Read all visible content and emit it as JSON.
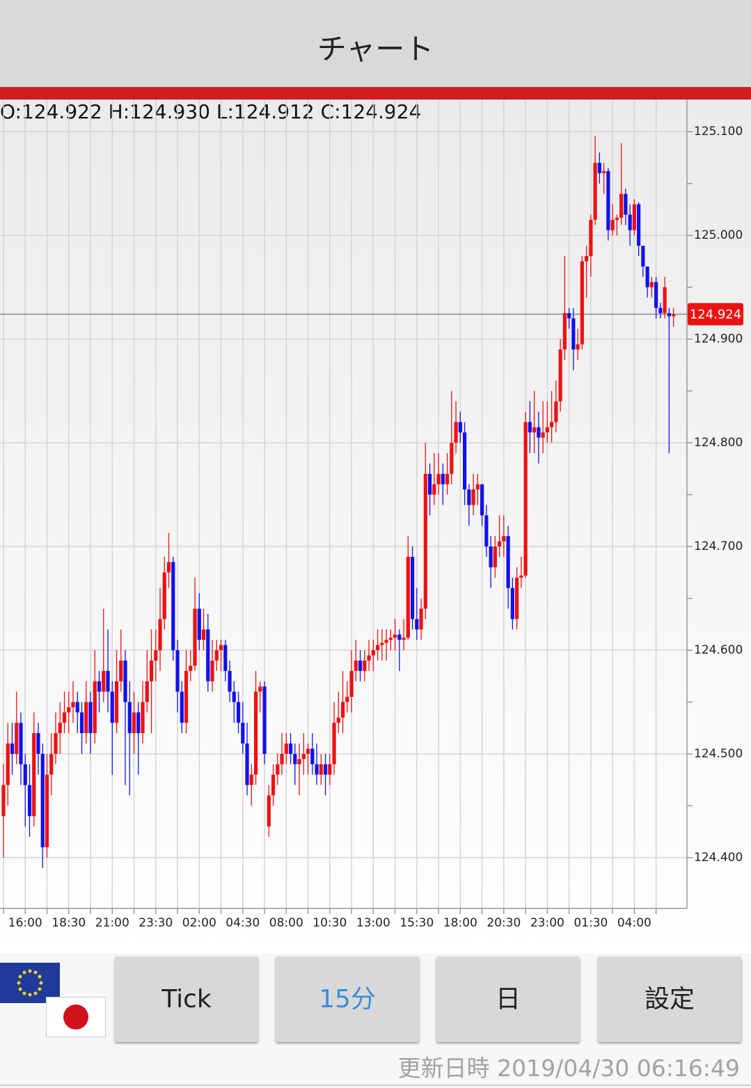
{
  "header": {
    "title": "チャート"
  },
  "chart_data": {
    "type": "candlestick",
    "ohlc_label": "O:124.922 H:124.930 L:124.912 C:124.924",
    "up_color": "#ee1111",
    "down_color": "#1111ee",
    "xlim": [
      -0.8,
      157.1
    ],
    "ylim": [
      124.351,
      125.131
    ],
    "xticks": [
      {
        "value": 5,
        "label": "16:00"
      },
      {
        "value": 15,
        "label": "18:30"
      },
      {
        "value": 25,
        "label": "21:00"
      },
      {
        "value": 35,
        "label": "23:30"
      },
      {
        "value": 45,
        "label": "02:00"
      },
      {
        "value": 55,
        "label": "04:30"
      },
      {
        "value": 65,
        "label": "08:00"
      },
      {
        "value": 75,
        "label": "10:30"
      },
      {
        "value": 85,
        "label": "13:00"
      },
      {
        "value": 95,
        "label": "15:30"
      },
      {
        "value": 105,
        "label": "18:00"
      },
      {
        "value": 115,
        "label": "20:30"
      },
      {
        "value": 125,
        "label": "23:00"
      },
      {
        "value": 135,
        "label": "01:30"
      },
      {
        "value": 145,
        "label": "04:00"
      }
    ],
    "xminorticks": [
      0,
      10,
      20,
      30,
      40,
      50,
      60,
      70,
      80,
      90,
      100,
      110,
      120,
      130,
      140,
      150
    ],
    "yticks": [
      {
        "value": 124.4,
        "label": "124.400"
      },
      {
        "value": 124.5,
        "label": "124.500"
      },
      {
        "value": 124.6,
        "label": "124.600"
      },
      {
        "value": 124.7,
        "label": "124.700"
      },
      {
        "value": 124.8,
        "label": "124.800"
      },
      {
        "value": 124.9,
        "label": "124.900"
      },
      {
        "value": 125.0,
        "label": "125.000"
      },
      {
        "value": 125.1,
        "label": "125.100"
      }
    ],
    "yminorticks": [
      124.45,
      124.55,
      124.65,
      124.75,
      124.85,
      124.95,
      125.05
    ],
    "grid": true,
    "last_price": {
      "value": 124.924,
      "label": "124.924"
    },
    "candles": [
      [
        124.44,
        124.49,
        124.4,
        124.47
      ],
      [
        124.47,
        124.53,
        124.45,
        124.51
      ],
      [
        124.51,
        124.53,
        124.48,
        124.5
      ],
      [
        124.5,
        124.56,
        124.49,
        124.53
      ],
      [
        124.53,
        124.54,
        124.47,
        124.49
      ],
      [
        124.49,
        124.5,
        124.43,
        124.47
      ],
      [
        124.47,
        124.49,
        124.42,
        124.44
      ],
      [
        124.44,
        124.54,
        124.43,
        124.52
      ],
      [
        124.52,
        124.53,
        124.48,
        124.5
      ],
      [
        124.5,
        124.51,
        124.39,
        124.41
      ],
      [
        124.41,
        124.5,
        124.4,
        124.48
      ],
      [
        124.48,
        124.52,
        124.46,
        124.5
      ],
      [
        124.5,
        124.54,
        124.49,
        124.52
      ],
      [
        124.52,
        124.55,
        124.5,
        124.53
      ],
      [
        124.53,
        124.56,
        124.52,
        124.54
      ],
      [
        124.54,
        124.56,
        124.52,
        124.545
      ],
      [
        124.545,
        124.57,
        124.53,
        124.55
      ],
      [
        124.55,
        124.56,
        124.52,
        124.54
      ],
      [
        124.54,
        124.55,
        124.5,
        124.52
      ],
      [
        124.52,
        124.57,
        124.51,
        124.55
      ],
      [
        124.55,
        124.56,
        124.5,
        124.52
      ],
      [
        124.52,
        124.6,
        124.51,
        124.57
      ],
      [
        124.57,
        124.58,
        124.54,
        124.56
      ],
      [
        124.56,
        124.64,
        124.55,
        124.58
      ],
      [
        124.58,
        124.62,
        124.54,
        124.56
      ],
      [
        124.56,
        124.57,
        124.48,
        124.53
      ],
      [
        124.53,
        124.6,
        124.52,
        124.57
      ],
      [
        124.57,
        124.62,
        124.56,
        124.59
      ],
      [
        124.59,
        124.6,
        124.47,
        124.55
      ],
      [
        124.55,
        124.57,
        124.46,
        124.52
      ],
      [
        124.52,
        124.56,
        124.5,
        124.54
      ],
      [
        124.54,
        124.55,
        124.48,
        124.52
      ],
      [
        124.52,
        124.57,
        124.51,
        124.55
      ],
      [
        124.55,
        124.6,
        124.54,
        124.57
      ],
      [
        124.57,
        124.62,
        124.52,
        124.59
      ],
      [
        124.59,
        124.62,
        124.57,
        124.6
      ],
      [
        124.6,
        124.66,
        124.58,
        124.63
      ],
      [
        124.63,
        124.69,
        124.62,
        124.675
      ],
      [
        124.675,
        124.713,
        124.66,
        124.685
      ],
      [
        124.685,
        124.69,
        124.59,
        124.6
      ],
      [
        124.6,
        124.61,
        124.54,
        124.56
      ],
      [
        124.56,
        124.57,
        124.52,
        124.53
      ],
      [
        124.53,
        124.6,
        124.52,
        124.58
      ],
      [
        124.58,
        124.6,
        124.57,
        124.585
      ],
      [
        124.585,
        124.67,
        124.58,
        124.64
      ],
      [
        124.64,
        124.655,
        124.6,
        124.61
      ],
      [
        124.61,
        124.64,
        124.6,
        124.62
      ],
      [
        124.62,
        124.635,
        124.56,
        124.57
      ],
      [
        124.57,
        124.61,
        124.56,
        124.59
      ],
      [
        124.59,
        124.61,
        124.58,
        124.6
      ],
      [
        124.6,
        124.61,
        124.58,
        124.605
      ],
      [
        124.605,
        124.61,
        124.57,
        124.58
      ],
      [
        124.58,
        124.59,
        124.55,
        124.56
      ],
      [
        124.56,
        124.57,
        124.53,
        124.55
      ],
      [
        124.55,
        124.56,
        124.52,
        124.53
      ],
      [
        124.53,
        124.55,
        124.5,
        124.51
      ],
      [
        124.51,
        124.53,
        124.46,
        124.47
      ],
      [
        124.47,
        124.49,
        124.45,
        124.48
      ],
      [
        124.48,
        124.58,
        124.47,
        124.56
      ],
      [
        124.56,
        124.57,
        124.54,
        124.565
      ],
      [
        124.565,
        124.57,
        124.49,
        124.5
      ],
      [
        124.43,
        124.47,
        124.42,
        124.46
      ],
      [
        124.46,
        124.49,
        124.45,
        124.48
      ],
      [
        124.48,
        124.5,
        124.47,
        124.49
      ],
      [
        124.49,
        124.52,
        124.48,
        124.5
      ],
      [
        124.5,
        124.52,
        124.49,
        124.51
      ],
      [
        124.51,
        124.52,
        124.49,
        124.5
      ],
      [
        124.5,
        124.51,
        124.47,
        124.49
      ],
      [
        124.49,
        124.51,
        124.46,
        124.495
      ],
      [
        124.495,
        124.52,
        124.48,
        124.5
      ],
      [
        124.5,
        124.51,
        124.48,
        124.505
      ],
      [
        124.505,
        124.52,
        124.48,
        124.49
      ],
      [
        124.49,
        124.51,
        124.47,
        124.48
      ],
      [
        124.48,
        124.5,
        124.47,
        124.49
      ],
      [
        124.49,
        124.5,
        124.46,
        124.48
      ],
      [
        124.48,
        124.5,
        124.47,
        124.49
      ],
      [
        124.49,
        124.55,
        124.48,
        124.53
      ],
      [
        124.53,
        124.56,
        124.52,
        124.535
      ],
      [
        124.535,
        124.58,
        124.52,
        124.55
      ],
      [
        124.55,
        124.57,
        124.54,
        124.555
      ],
      [
        124.555,
        124.6,
        124.54,
        124.58
      ],
      [
        124.58,
        124.61,
        124.57,
        124.59
      ],
      [
        124.59,
        124.6,
        124.57,
        124.58
      ],
      [
        124.58,
        124.6,
        124.57,
        124.59
      ],
      [
        124.59,
        124.61,
        124.58,
        124.595
      ],
      [
        124.595,
        124.61,
        124.58,
        124.6
      ],
      [
        124.6,
        124.62,
        124.59,
        124.605
      ],
      [
        124.605,
        124.62,
        124.59,
        124.607
      ],
      [
        124.607,
        124.62,
        124.59,
        124.61
      ],
      [
        124.61,
        124.62,
        124.6,
        124.612
      ],
      [
        124.612,
        124.63,
        124.6,
        124.615
      ],
      [
        124.615,
        124.62,
        124.58,
        124.61
      ],
      [
        124.61,
        124.63,
        124.6,
        124.612
      ],
      [
        124.612,
        124.71,
        124.61,
        124.69
      ],
      [
        124.69,
        124.7,
        124.62,
        124.63
      ],
      [
        124.63,
        124.66,
        124.61,
        124.62
      ],
      [
        124.62,
        124.65,
        124.61,
        124.64
      ],
      [
        124.64,
        124.8,
        124.63,
        124.77
      ],
      [
        124.77,
        124.78,
        124.73,
        124.75
      ],
      [
        124.75,
        124.79,
        124.74,
        124.76
      ],
      [
        124.76,
        124.79,
        124.75,
        124.77
      ],
      [
        124.77,
        124.78,
        124.74,
        124.76
      ],
      [
        124.76,
        124.79,
        124.75,
        124.77
      ],
      [
        124.77,
        124.85,
        124.76,
        124.8
      ],
      [
        124.8,
        124.84,
        124.79,
        124.82
      ],
      [
        124.82,
        124.83,
        124.8,
        124.81
      ],
      [
        124.81,
        124.82,
        124.74,
        124.755
      ],
      [
        124.755,
        124.76,
        124.72,
        124.74
      ],
      [
        124.74,
        124.77,
        124.73,
        124.755
      ],
      [
        124.755,
        124.77,
        124.74,
        124.76
      ],
      [
        124.76,
        124.76,
        124.72,
        124.73
      ],
      [
        124.73,
        124.74,
        124.69,
        124.7
      ],
      [
        124.7,
        124.71,
        124.66,
        124.68
      ],
      [
        124.68,
        124.71,
        124.67,
        124.7
      ],
      [
        124.7,
        124.73,
        124.69,
        124.705
      ],
      [
        124.705,
        124.73,
        124.69,
        124.71
      ],
      [
        124.71,
        124.72,
        124.64,
        124.66
      ],
      [
        124.66,
        124.67,
        124.62,
        124.63
      ],
      [
        124.63,
        124.68,
        124.62,
        124.67
      ],
      [
        124.67,
        124.69,
        124.66,
        124.672
      ],
      [
        124.672,
        124.83,
        124.67,
        124.82
      ],
      [
        124.82,
        124.84,
        124.79,
        124.81
      ],
      [
        124.81,
        124.85,
        124.79,
        124.815
      ],
      [
        124.815,
        124.83,
        124.78,
        124.805
      ],
      [
        124.805,
        124.84,
        124.79,
        124.81
      ],
      [
        124.81,
        124.84,
        124.8,
        124.815
      ],
      [
        124.815,
        124.85,
        124.8,
        124.82
      ],
      [
        124.82,
        124.86,
        124.81,
        124.84
      ],
      [
        124.84,
        124.9,
        124.83,
        124.89
      ],
      [
        124.89,
        124.98,
        124.88,
        124.925
      ],
      [
        124.925,
        124.93,
        124.91,
        124.92
      ],
      [
        124.92,
        124.93,
        124.87,
        124.89
      ],
      [
        124.89,
        124.91,
        124.88,
        124.895
      ],
      [
        124.895,
        124.98,
        124.89,
        124.975
      ],
      [
        124.975,
        124.99,
        124.94,
        124.98
      ],
      [
        124.98,
        125.02,
        124.96,
        125.015
      ],
      [
        125.015,
        125.096,
        125.01,
        125.07
      ],
      [
        125.07,
        125.08,
        125.05,
        125.06
      ],
      [
        125.06,
        125.07,
        125.04,
        125.062
      ],
      [
        125.062,
        125.065,
        124.995,
        125.005
      ],
      [
        125.005,
        125.03,
        125.0,
        125.015
      ],
      [
        125.015,
        125.02,
        125.0,
        125.017
      ],
      [
        125.017,
        125.089,
        125.01,
        125.04
      ],
      [
        125.04,
        125.045,
        125.01,
        125.02
      ],
      [
        125.02,
        125.03,
        124.99,
        125.005
      ],
      [
        125.005,
        125.035,
        125.0,
        125.03
      ],
      [
        125.03,
        125.032,
        124.98,
        124.99
      ],
      [
        124.99,
        124.99,
        124.96,
        124.97
      ],
      [
        124.97,
        124.97,
        124.94,
        124.95
      ],
      [
        124.95,
        124.96,
        124.94,
        124.955
      ],
      [
        124.955,
        124.96,
        124.92,
        124.93
      ],
      [
        124.93,
        124.935,
        124.92,
        124.925
      ],
      [
        124.925,
        124.96,
        124.92,
        124.95
      ],
      [
        124.925,
        124.93,
        124.79,
        124.922
      ],
      [
        124.922,
        124.93,
        124.912,
        124.924
      ]
    ]
  },
  "buttons": [
    "Tick",
    "15分",
    "日",
    "設定"
  ],
  "footer": {
    "updated": "更新日時 2019/04/30 06:16:49"
  }
}
